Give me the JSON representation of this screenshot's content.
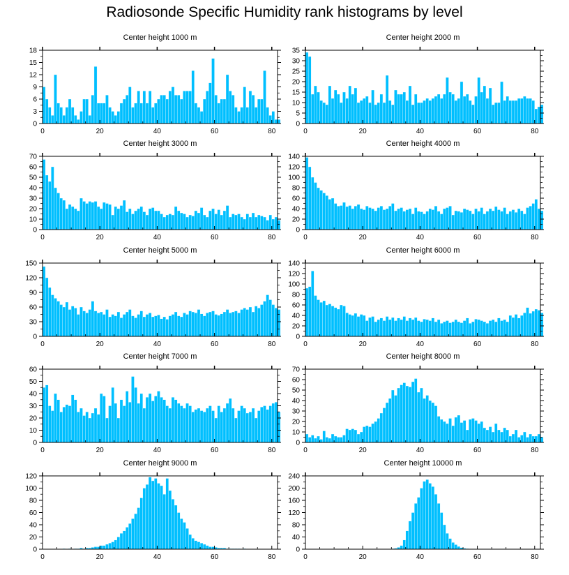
{
  "title": "Radiosonde Specific Humidity rank histograms by level",
  "colors": {
    "bar": "#00bfff",
    "bar_edge": "#ffffff",
    "axis": "#000000"
  },
  "chart_data": [
    {
      "type": "bar",
      "title": "Center height 1000 m",
      "xlabel": "",
      "ylabel": "",
      "x_start": 0,
      "xlim": [
        0,
        82
      ],
      "ylim": [
        0,
        18
      ],
      "xticks": [
        0,
        20,
        40,
        60,
        80
      ],
      "yticks": [
        0,
        3,
        6,
        9,
        12,
        15,
        18
      ],
      "values": [
        9,
        6,
        4,
        2,
        12,
        5,
        4,
        2,
        4,
        6,
        4,
        2,
        1,
        3,
        6,
        6,
        2,
        7,
        14,
        5,
        5,
        5,
        7,
        4,
        3,
        2,
        3,
        5,
        6,
        7,
        9,
        4,
        5,
        8,
        5,
        8,
        5,
        8,
        4,
        5,
        6,
        7,
        7,
        6,
        8,
        9,
        7,
        7,
        6,
        8,
        8,
        8,
        13,
        5,
        4,
        3,
        6,
        8,
        10,
        16,
        7,
        5,
        6,
        6,
        12,
        8,
        7,
        4,
        3,
        4,
        9,
        4,
        8,
        7,
        4,
        6,
        6,
        13,
        4,
        2,
        3,
        1,
        1
      ]
    },
    {
      "type": "bar",
      "title": "Center height 2000 m",
      "xlabel": "",
      "ylabel": "",
      "x_start": 0,
      "xlim": [
        0,
        82
      ],
      "ylim": [
        0,
        35
      ],
      "xticks": [
        0,
        20,
        40,
        60,
        80
      ],
      "yticks": [
        0,
        5,
        10,
        15,
        20,
        25,
        30,
        35
      ],
      "values": [
        34,
        32,
        14,
        18,
        15,
        11,
        10,
        9,
        18,
        12,
        16,
        14,
        10,
        15,
        12,
        18,
        14,
        17,
        10,
        11,
        12,
        13,
        10,
        16,
        9,
        10,
        14,
        10,
        23,
        11,
        9,
        16,
        14,
        14,
        15,
        11,
        18,
        9,
        14,
        10,
        10,
        11,
        12,
        11,
        12,
        13,
        14,
        12,
        14,
        22,
        15,
        14,
        11,
        12,
        20,
        13,
        14,
        11,
        9,
        13,
        22,
        15,
        18,
        12,
        17,
        9,
        10,
        10,
        20,
        11,
        13,
        11,
        11,
        11,
        12,
        12,
        13,
        12,
        12,
        11,
        7,
        8,
        9
      ]
    },
    {
      "type": "bar",
      "title": "Center height 3000 m",
      "xlabel": "",
      "ylabel": "",
      "x_start": 0,
      "xlim": [
        0,
        82
      ],
      "ylim": [
        0,
        70
      ],
      "xticks": [
        0,
        20,
        40,
        60,
        80
      ],
      "yticks": [
        0,
        10,
        20,
        30,
        40,
        50,
        60,
        70
      ],
      "values": [
        67,
        52,
        46,
        60,
        40,
        35,
        30,
        28,
        20,
        24,
        22,
        20,
        18,
        30,
        27,
        25,
        27,
        26,
        27,
        22,
        20,
        26,
        25,
        24,
        14,
        22,
        20,
        23,
        28,
        17,
        20,
        15,
        18,
        20,
        22,
        17,
        14,
        20,
        21,
        18,
        18,
        15,
        12,
        14,
        15,
        14,
        22,
        18,
        16,
        15,
        12,
        14,
        13,
        18,
        16,
        21,
        14,
        12,
        18,
        20,
        15,
        19,
        14,
        18,
        23,
        12,
        15,
        14,
        15,
        12,
        10,
        15,
        12,
        16,
        12,
        14,
        13,
        12,
        9,
        14,
        10,
        12,
        9
      ]
    },
    {
      "type": "bar",
      "title": "Center height 4000 m",
      "xlabel": "",
      "ylabel": "",
      "x_start": 0,
      "xlim": [
        0,
        82
      ],
      "ylim": [
        0,
        140
      ],
      "xticks": [
        0,
        20,
        40,
        60,
        80
      ],
      "yticks": [
        0,
        20,
        40,
        60,
        80,
        100,
        120,
        140
      ],
      "values": [
        138,
        120,
        100,
        90,
        80,
        75,
        70,
        65,
        58,
        60,
        50,
        45,
        46,
        52,
        44,
        46,
        40,
        45,
        48,
        40,
        38,
        45,
        42,
        40,
        36,
        42,
        45,
        38,
        40,
        45,
        50,
        36,
        40,
        42,
        35,
        38,
        40,
        30,
        42,
        35,
        34,
        30,
        35,
        40,
        38,
        45,
        35,
        30,
        40,
        42,
        45,
        28,
        36,
        35,
        33,
        40,
        38,
        36,
        30,
        40,
        35,
        42,
        30,
        35,
        40,
        36,
        44,
        38,
        35,
        42,
        30,
        35,
        38,
        33,
        40,
        36,
        30,
        42,
        45,
        50,
        58,
        40,
        36
      ]
    },
    {
      "type": "bar",
      "title": "Center height 5000 m",
      "xlabel": "",
      "ylabel": "",
      "x_start": 0,
      "xlim": [
        0,
        82
      ],
      "ylim": [
        0,
        150
      ],
      "xticks": [
        0,
        20,
        40,
        60,
        80
      ],
      "yticks": [
        0,
        30,
        60,
        90,
        120,
        150
      ],
      "values": [
        143,
        120,
        100,
        85,
        78,
        72,
        65,
        60,
        70,
        55,
        62,
        58,
        45,
        60,
        52,
        48,
        55,
        72,
        52,
        48,
        50,
        45,
        55,
        40,
        45,
        42,
        50,
        38,
        45,
        50,
        55,
        42,
        38,
        45,
        52,
        40,
        45,
        48,
        40,
        42,
        44,
        36,
        40,
        35,
        42,
        45,
        50,
        42,
        40,
        48,
        45,
        52,
        50,
        48,
        55,
        46,
        42,
        48,
        50,
        52,
        45,
        43,
        46,
        50,
        55,
        48,
        50,
        52,
        48,
        55,
        58,
        55,
        60,
        50,
        62,
        58,
        65,
        72,
        85,
        75,
        65,
        58,
        55
      ]
    },
    {
      "type": "bar",
      "title": "Center height 6000 m",
      "xlabel": "",
      "ylabel": "",
      "x_start": 0,
      "xlim": [
        0,
        82
      ],
      "ylim": [
        0,
        140
      ],
      "xticks": [
        0,
        20,
        40,
        60,
        80
      ],
      "yticks": [
        0,
        20,
        40,
        60,
        80,
        100,
        120,
        140
      ],
      "values": [
        92,
        95,
        125,
        78,
        70,
        65,
        68,
        60,
        62,
        58,
        55,
        52,
        60,
        58,
        45,
        42,
        40,
        44,
        38,
        42,
        40,
        30,
        36,
        38,
        28,
        32,
        35,
        30,
        38,
        32,
        36,
        30,
        35,
        32,
        38,
        30,
        35,
        32,
        36,
        30,
        28,
        33,
        32,
        30,
        35,
        28,
        32,
        25,
        28,
        30,
        26,
        28,
        32,
        28,
        26,
        30,
        35,
        25,
        28,
        33,
        32,
        30,
        28,
        25,
        30,
        32,
        28,
        35,
        30,
        32,
        28,
        40,
        36,
        42,
        35,
        40,
        45,
        55,
        44,
        48,
        52,
        50,
        45
      ]
    },
    {
      "type": "bar",
      "title": "Center height 7000 m",
      "xlabel": "",
      "ylabel": "",
      "x_start": 0,
      "xlim": [
        0,
        82
      ],
      "ylim": [
        0,
        60
      ],
      "xticks": [
        0,
        20,
        40,
        60,
        80
      ],
      "yticks": [
        0,
        10,
        20,
        30,
        40,
        50,
        60
      ],
      "values": [
        45,
        47,
        30,
        26,
        40,
        35,
        25,
        29,
        31,
        30,
        39,
        35,
        25,
        28,
        22,
        25,
        20,
        24,
        28,
        23,
        40,
        38,
        20,
        30,
        45,
        32,
        20,
        35,
        30,
        42,
        33,
        54,
        45,
        32,
        40,
        28,
        37,
        40,
        34,
        38,
        42,
        37,
        35,
        30,
        28,
        37,
        35,
        32,
        30,
        28,
        32,
        30,
        25,
        27,
        28,
        26,
        25,
        28,
        30,
        26,
        20,
        30,
        25,
        28,
        32,
        36,
        28,
        20,
        26,
        30,
        28,
        24,
        25,
        28,
        20,
        26,
        29,
        30,
        27,
        30,
        32,
        33,
        25
      ]
    },
    {
      "type": "bar",
      "title": "Center height 8000 m",
      "xlabel": "",
      "ylabel": "",
      "x_start": 0,
      "xlim": [
        0,
        82
      ],
      "ylim": [
        0,
        70
      ],
      "xticks": [
        0,
        20,
        40,
        60,
        80
      ],
      "yticks": [
        0,
        10,
        20,
        30,
        40,
        50,
        60,
        70
      ],
      "values": [
        8,
        5,
        7,
        4,
        6,
        3,
        11,
        5,
        4,
        8,
        6,
        5,
        5,
        7,
        13,
        12,
        13,
        12,
        8,
        10,
        15,
        16,
        15,
        18,
        20,
        23,
        28,
        33,
        38,
        42,
        50,
        45,
        52,
        55,
        57,
        54,
        53,
        58,
        61,
        48,
        52,
        42,
        45,
        40,
        38,
        35,
        25,
        22,
        20,
        18,
        23,
        16,
        24,
        26,
        19,
        21,
        12,
        22,
        23,
        21,
        18,
        20,
        14,
        12,
        15,
        10,
        18,
        12,
        10,
        14,
        12,
        6,
        8,
        12,
        5,
        7,
        10,
        5,
        8,
        6,
        6,
        8,
        5
      ]
    },
    {
      "type": "bar",
      "title": "Center height 9000 m",
      "xlabel": "",
      "ylabel": "",
      "x_start": 0,
      "xlim": [
        0,
        82
      ],
      "ylim": [
        0,
        120
      ],
      "xticks": [
        0,
        20,
        40,
        60,
        80
      ],
      "yticks": [
        0,
        20,
        40,
        60,
        80,
        100,
        120
      ],
      "values": [
        0,
        0,
        0,
        0,
        0,
        0,
        0,
        1,
        0,
        1,
        0,
        1,
        1,
        2,
        1,
        2,
        2,
        3,
        4,
        4,
        6,
        6,
        8,
        10,
        12,
        15,
        20,
        26,
        30,
        36,
        42,
        50,
        58,
        68,
        84,
        100,
        106,
        118,
        112,
        116,
        108,
        104,
        90,
        116,
        96,
        82,
        72,
        60,
        50,
        44,
        34,
        24,
        18,
        14,
        12,
        10,
        8,
        6,
        4,
        4,
        3,
        2,
        2,
        2,
        1,
        1,
        1,
        1,
        1,
        0,
        1,
        0,
        0,
        0,
        0,
        0,
        0,
        0,
        0,
        0,
        0,
        0,
        0
      ]
    },
    {
      "type": "bar",
      "title": "Center height 10000 m",
      "xlabel": "",
      "ylabel": "",
      "x_start": 0,
      "xlim": [
        0,
        82
      ],
      "ylim": [
        0,
        240
      ],
      "xticks": [
        0,
        20,
        40,
        60,
        80
      ],
      "yticks": [
        0,
        40,
        80,
        120,
        160,
        200,
        240
      ],
      "values": [
        0,
        0,
        0,
        0,
        0,
        0,
        0,
        0,
        0,
        0,
        0,
        0,
        0,
        0,
        0,
        0,
        0,
        0,
        0,
        0,
        0,
        0,
        0,
        0,
        0,
        0,
        0,
        0,
        1,
        1,
        2,
        3,
        6,
        12,
        30,
        60,
        92,
        120,
        150,
        170,
        200,
        222,
        228,
        216,
        205,
        180,
        150,
        120,
        80,
        52,
        35,
        22,
        15,
        9,
        5,
        3,
        2,
        1,
        1,
        0,
        0,
        0,
        0,
        0,
        0,
        0,
        0,
        0,
        0,
        0,
        0,
        0,
        0,
        0,
        0,
        0,
        0,
        0,
        0,
        0,
        0,
        0,
        0
      ]
    }
  ]
}
